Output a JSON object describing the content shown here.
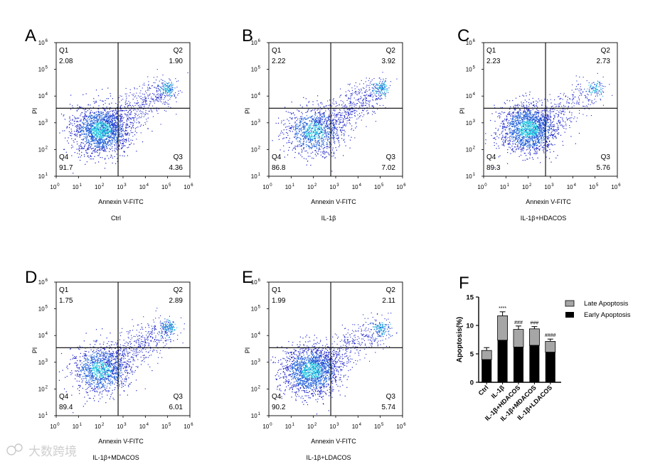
{
  "chart_data": [
    {
      "type": "scatter",
      "panel": "A",
      "group": "Ctrl",
      "xlabel": "Annexin V-FITC",
      "ylabel": "PI",
      "xlim": [
        1,
        1000000
      ],
      "ylim": [
        10,
        1000000
      ],
      "log_scale": true,
      "gate": {
        "x": 600,
        "y": 3500
      },
      "quadrants": {
        "Q1": "2.08",
        "Q2": "1.90",
        "Q3": "4.36",
        "Q4": "91.7"
      },
      "cloud": {
        "x_center": 100,
        "y_center": 550,
        "density": 1.0,
        "late_cluster": 1
      }
    },
    {
      "type": "scatter",
      "panel": "B",
      "group": "IL-1β",
      "xlabel": "Annexin V-FITC",
      "ylabel": "PI",
      "xlim": [
        1,
        1000000
      ],
      "ylim": [
        10,
        1000000
      ],
      "log_scale": true,
      "gate": {
        "x": 600,
        "y": 3500
      },
      "quadrants": {
        "Q1": "2.22",
        "Q2": "3.92",
        "Q3": "7.02",
        "Q4": "86.8"
      },
      "cloud": {
        "x_center": 110,
        "y_center": 500,
        "density": 0.55,
        "late_cluster": 1
      }
    },
    {
      "type": "scatter",
      "panel": "C",
      "group": "IL-1β+HDACOS",
      "xlabel": "Annexin V-FITC",
      "ylabel": "PI",
      "xlim": [
        1,
        1000000
      ],
      "ylim": [
        10,
        1000000
      ],
      "log_scale": true,
      "gate": {
        "x": 600,
        "y": 3500
      },
      "quadrants": {
        "Q1": "2.23",
        "Q2": "2.73",
        "Q3": "5.76",
        "Q4": "89.3"
      },
      "cloud": {
        "x_center": 100,
        "y_center": 600,
        "density": 1.0,
        "late_cluster": 0.6
      }
    },
    {
      "type": "scatter",
      "panel": "D",
      "group": "IL-1β+MDACOS",
      "xlabel": "Annexin V-FITC",
      "ylabel": "PI",
      "xlim": [
        1,
        1000000
      ],
      "ylim": [
        10,
        1000000
      ],
      "log_scale": true,
      "gate": {
        "x": 600,
        "y": 3500
      },
      "quadrants": {
        "Q1": "1.75",
        "Q2": "2.89",
        "Q3": "6.01",
        "Q4": "89.4"
      },
      "cloud": {
        "x_center": 100,
        "y_center": 550,
        "density": 0.65,
        "late_cluster": 1
      }
    },
    {
      "type": "scatter",
      "panel": "E",
      "group": "IL-1β+LDACOS",
      "xlabel": "Annexin V-FITC",
      "ylabel": "PI",
      "xlim": [
        1,
        1000000
      ],
      "ylim": [
        10,
        1000000
      ],
      "log_scale": true,
      "gate": {
        "x": 600,
        "y": 3500
      },
      "quadrants": {
        "Q1": "1.99",
        "Q2": "2.11",
        "Q3": "5.74",
        "Q4": "90.2"
      },
      "cloud": {
        "x_center": 80,
        "y_center": 500,
        "density": 1.0,
        "late_cluster": 0.8
      }
    },
    {
      "type": "bar",
      "stacked": true,
      "panel": "F",
      "ylabel": "Apoptosis(%)",
      "ylim": [
        0,
        15
      ],
      "yticks": [
        0,
        5,
        10,
        15
      ],
      "categories": [
        "Ctrl",
        "IL-1β",
        "IL-1β+HDACOS",
        "IL-1β+MDACOS",
        "IL-1β+LDACOS"
      ],
      "series": [
        {
          "name": "Early Apoptosis",
          "color": "#000000",
          "values": [
            4.0,
            7.4,
            6.2,
            6.5,
            5.3
          ]
        },
        {
          "name": "Late Apoptosis",
          "color": "#a6a6a6",
          "values": [
            1.6,
            4.3,
            3.1,
            2.9,
            1.9
          ]
        }
      ],
      "errors": [
        0.5,
        0.7,
        0.6,
        0.4,
        0.4
      ],
      "annotations": [
        "",
        "****",
        "###",
        "###",
        "####"
      ],
      "legend": [
        "Late Apoptosis",
        "Early Apoptosis"
      ]
    }
  ],
  "watermark": "大数跨境",
  "tick_exponents": [
    "0",
    "1",
    "2",
    "3",
    "4",
    "5",
    "6"
  ],
  "tick_base": "10",
  "colors": {
    "cells_dense": "#22c8e0",
    "cells_mid": "#1f5fd8",
    "cells_sparse": "#1a22c8",
    "gate": "#000000",
    "late_bar": "#a6a6a6",
    "early_bar": "#000000"
  }
}
